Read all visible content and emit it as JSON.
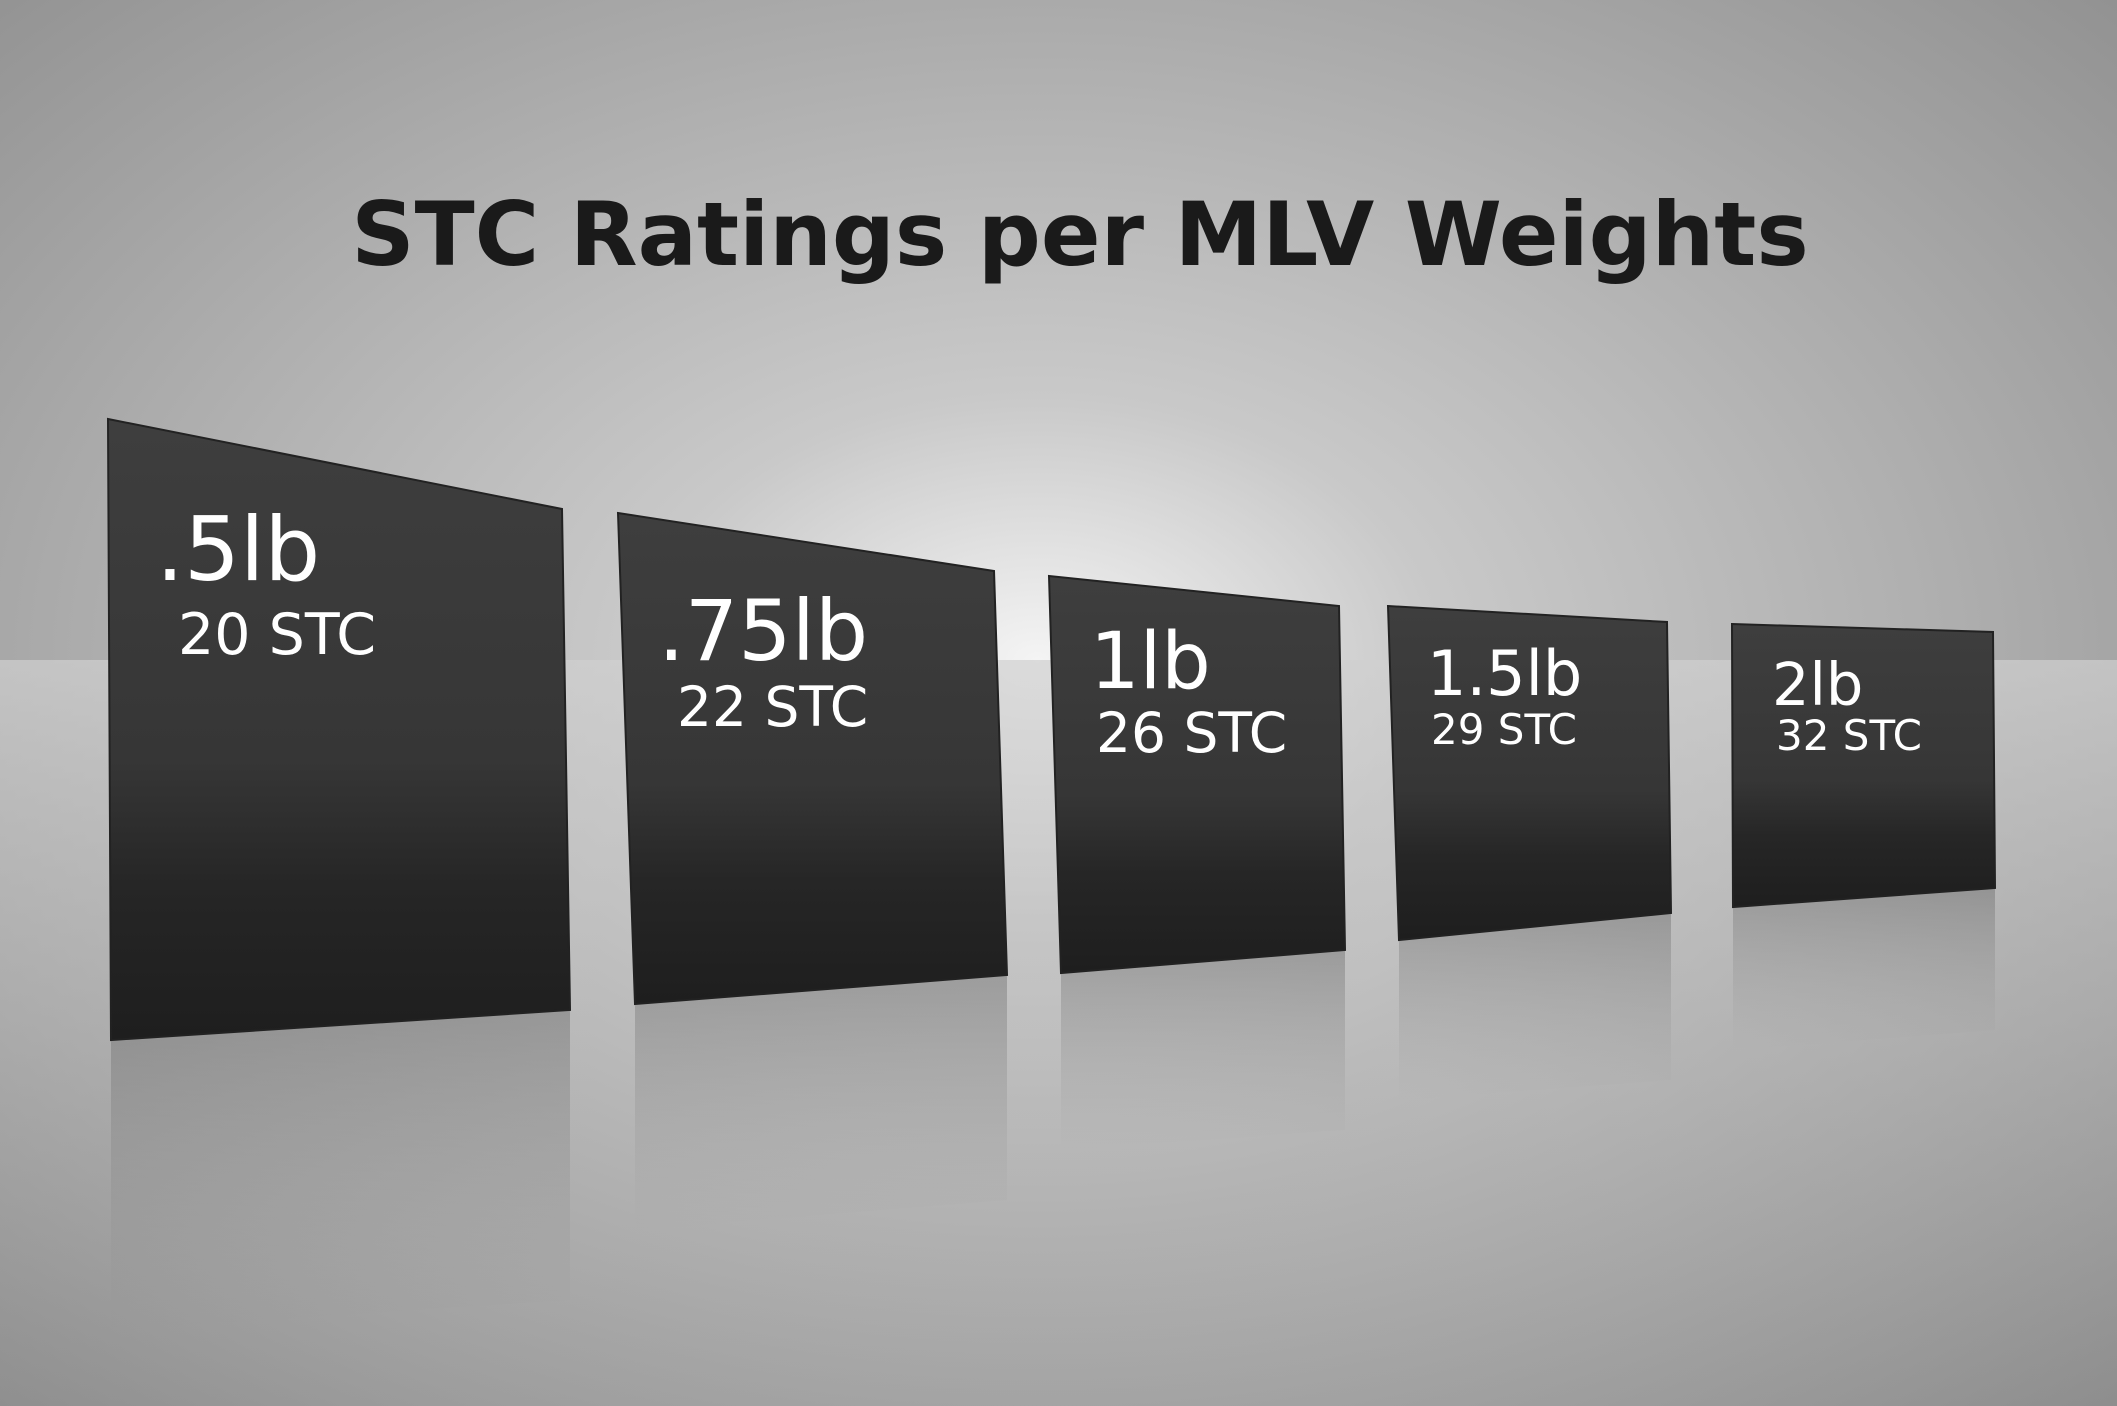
{
  "title": "STC Ratings per MLV Weights",
  "panels": [
    {
      "weight": ".5lb",
      "rating": "20 STC"
    },
    {
      "weight": ".75lb",
      "rating": "22 STC"
    },
    {
      "weight": "1lb",
      "rating": "26 STC"
    },
    {
      "weight": "1.5lb",
      "rating": "29 STC"
    },
    {
      "weight": "2lb",
      "rating": "32 STC"
    }
  ]
}
